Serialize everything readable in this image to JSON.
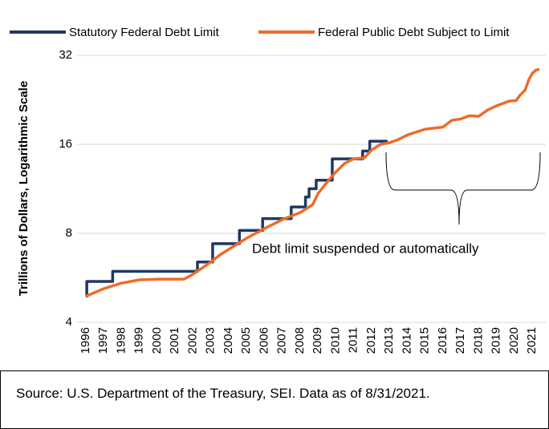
{
  "chart_data": {
    "type": "line",
    "ylabel": "Trillions of Dollars, Logarithmic Scale",
    "log_scale": true,
    "grid": true,
    "legend": "top",
    "xlim": [
      1996,
      2021.4
    ],
    "xticks": [
      1996,
      1997,
      1998,
      1999,
      2000,
      2001,
      2002,
      2003,
      2004,
      2005,
      2006,
      2007,
      2008,
      2009,
      2010,
      2011,
      2012,
      2013,
      2014,
      2015,
      2016,
      2017,
      2018,
      2019,
      2020,
      2021
    ],
    "ylim": [
      4,
      32
    ],
    "yticks": [
      4,
      8,
      16,
      32
    ],
    "series": [
      {
        "name": "Statutory Federal Debt Limit",
        "color": "#1f3864",
        "step": "post",
        "x": [
          1996.0,
          1996.05,
          1997.5,
          2002.25,
          2003.1,
          2004.6,
          2005.9,
          2007.5,
          2008.3,
          2008.5,
          2008.9,
          2009.8,
          2011.5,
          2011.9,
          2012.9
        ],
        "values": [
          4.9,
          5.5,
          5.95,
          6.4,
          7.38,
          8.18,
          8.97,
          9.82,
          10.62,
          11.32,
          12.1,
          14.29,
          15.19,
          16.39,
          16.39
        ]
      },
      {
        "name": "Federal Public Debt Subject to Limit",
        "color": "#ee6c2a",
        "x": [
          1996.0,
          1997.0,
          1998.0,
          1999.0,
          2000.0,
          2001.0,
          2001.5,
          2002.0,
          2002.5,
          2003.0,
          2003.5,
          2004.0,
          2005.0,
          2006.0,
          2007.0,
          2008.0,
          2008.7,
          2009.0,
          2009.5,
          2010.0,
          2010.5,
          2011.0,
          2011.6,
          2012.0,
          2012.5,
          2013.0,
          2013.5,
          2014.0,
          2015.0,
          2016.0,
          2016.5,
          2017.0,
          2017.5,
          2018.0,
          2018.5,
          2019.0,
          2019.7,
          2020.1,
          2020.3,
          2020.6,
          2020.8,
          2021.0,
          2021.2,
          2021.4
        ],
        "values": [
          4.9,
          5.2,
          5.43,
          5.57,
          5.6,
          5.6,
          5.6,
          5.82,
          6.1,
          6.4,
          6.76,
          7.06,
          7.7,
          8.3,
          8.9,
          9.4,
          10.0,
          10.9,
          11.9,
          12.9,
          13.8,
          14.3,
          14.4,
          15.3,
          16.0,
          16.2,
          16.6,
          17.2,
          18.0,
          18.3,
          19.3,
          19.5,
          20.0,
          19.9,
          20.9,
          21.6,
          22.4,
          22.5,
          23.4,
          24.4,
          26.4,
          27.8,
          28.5,
          28.7
        ]
      }
    ],
    "annotation": "Debt limit suspended or automatically",
    "source": "Source: U.S. Department of the Treasury, SEI. Data as of 8/31/2021."
  }
}
